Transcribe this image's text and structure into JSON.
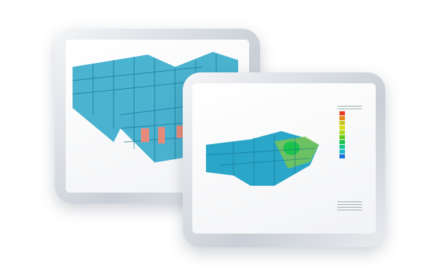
{
  "scene": {
    "back_tablet": {
      "content": "structural-frame-model"
    },
    "front_tablet": {
      "content": "structural-analysis-contour-model"
    },
    "colors": {
      "model_cyan": "#2aa6c8",
      "model_dark": "#157b9c",
      "highlight_red": "#e88a7a",
      "legend_scale": [
        "#e53a1e",
        "#e8871c",
        "#c9c81d",
        "#d9e01a",
        "#a6d81b",
        "#5fc81b",
        "#1cc34b",
        "#1ac48f",
        "#1ab8c7",
        "#1a6fd8"
      ]
    }
  }
}
